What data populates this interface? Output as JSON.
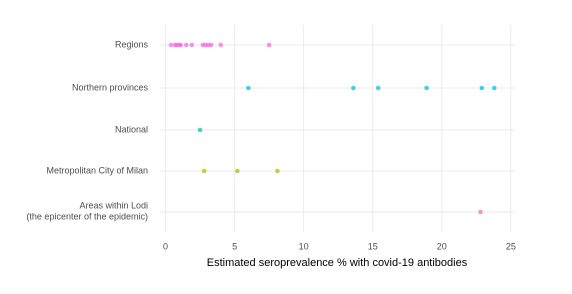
{
  "chart_data": {
    "type": "strip",
    "xlabel": "Estimated seroprevalence % with covid-19 antibodies",
    "categories": [
      "Regions",
      "Northern provinces",
      "National",
      "Metropolitan City of Milan",
      "Areas within Lodi\n(the epicenter of the epidemic)"
    ],
    "colors": [
      "#f564e3",
      "#00b9e3",
      "#00c19a",
      "#b3b300",
      "#f8766d"
    ],
    "values": [
      [
        0.4,
        0.7,
        0.8,
        1.0,
        1.1,
        1.5,
        1.9,
        2.7,
        2.9,
        3.1,
        3.3,
        4.0,
        7.5
      ],
      [
        6.0,
        13.6,
        15.4,
        18.9,
        22.9,
        23.8
      ],
      [
        2.5
      ],
      [
        2.8,
        5.2,
        8.1
      ],
      [
        22.8
      ]
    ],
    "xlim": [
      -0.4,
      25.3
    ],
    "xticks": [
      0,
      5,
      10,
      15,
      20,
      25
    ],
    "grid": true
  }
}
